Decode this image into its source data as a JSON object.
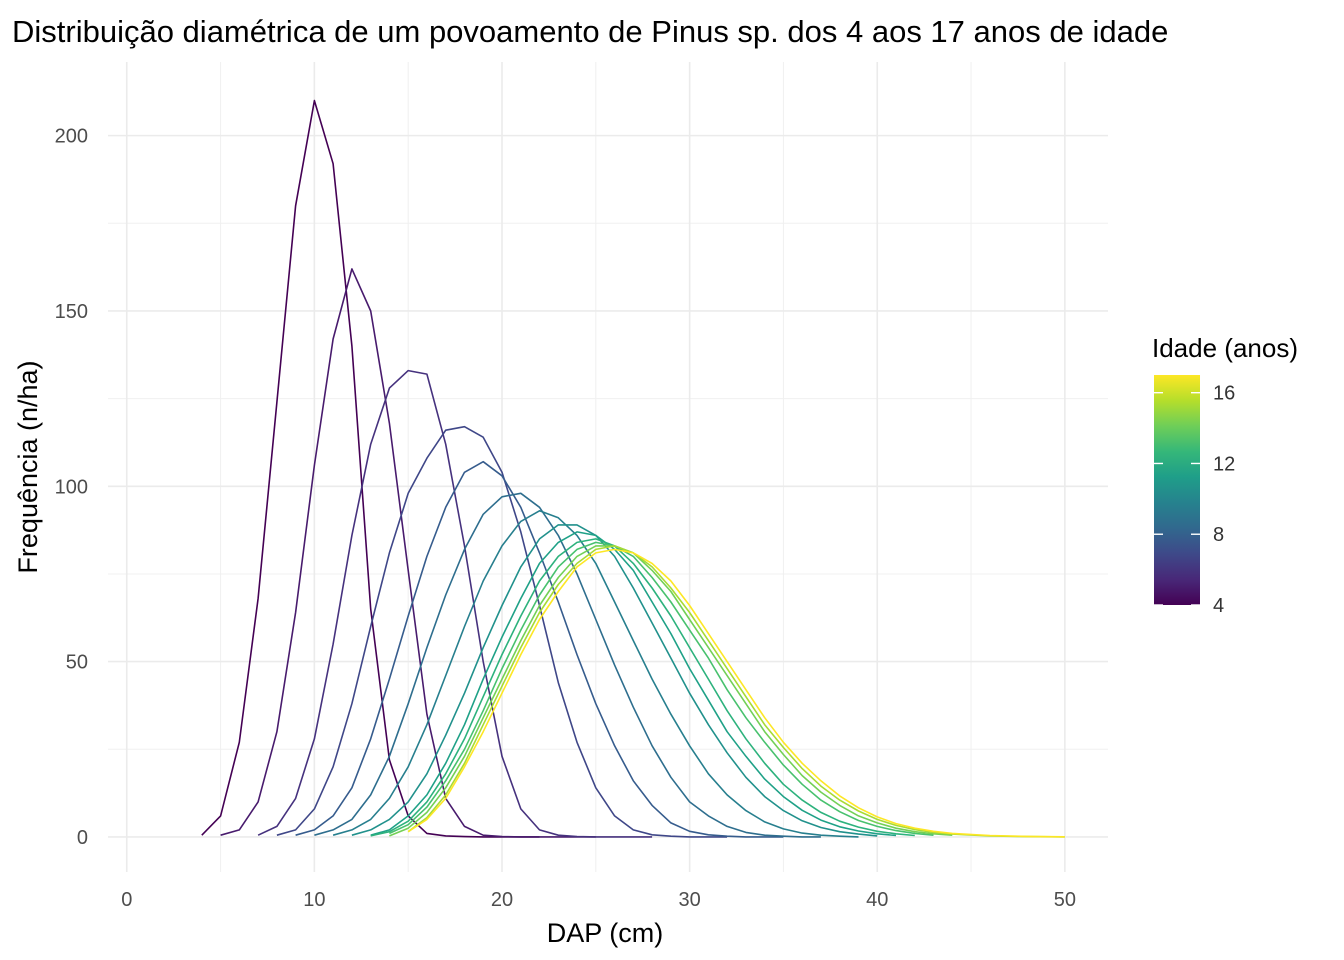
{
  "chart_data": {
    "type": "line",
    "title": "Distribuição diamétrica de um povoamento de Pinus sp. dos 4 aos 17 anos de idade",
    "xlabel": "DAP (cm)",
    "ylabel": "Frequência (n/ha)",
    "xlim": [
      -1,
      52.3
    ],
    "ylim": [
      -10,
      221
    ],
    "x_ticks": [
      0,
      10,
      20,
      30,
      40,
      50
    ],
    "y_ticks": [
      0,
      50,
      100,
      150,
      200
    ],
    "x_tick_labels": [
      "0",
      "10",
      "20",
      "30",
      "40",
      "50"
    ],
    "y_tick_labels": [
      "0",
      "50",
      "100",
      "150",
      "200"
    ],
    "grid": true,
    "legend": {
      "title": "Idade (anos)",
      "placement": "right",
      "type": "colorbar",
      "min": 4,
      "max": 17,
      "ticks": [
        4,
        8,
        12,
        16
      ],
      "tick_labels": [
        "4",
        "8",
        "12",
        "16"
      ],
      "colors": [
        "#440154",
        "#482878",
        "#3e4989",
        "#31688e",
        "#26828e",
        "#1f9e89",
        "#35b779",
        "#6ece58",
        "#b5de2b",
        "#fde725"
      ]
    },
    "series": [
      {
        "age": 4,
        "color": "#440154",
        "x": [
          4,
          5,
          6,
          7,
          8,
          9,
          10,
          11,
          12,
          13,
          14,
          15,
          16,
          17,
          18,
          19,
          20,
          21,
          22
        ],
        "y": [
          0.5,
          6,
          27,
          68,
          124,
          180,
          210,
          192,
          140,
          65,
          22,
          6,
          1,
          0.3,
          0.1,
          0,
          0,
          0,
          0
        ]
      },
      {
        "age": 5,
        "color": "#481b6d",
        "x": [
          5,
          6,
          7,
          8,
          9,
          10,
          11,
          12,
          13,
          14,
          15,
          16,
          17,
          18,
          19,
          20,
          21,
          22,
          23,
          24,
          25
        ],
        "y": [
          0.5,
          2,
          10,
          30,
          64,
          106,
          142,
          162,
          150,
          118,
          76,
          35,
          11,
          3,
          0.5,
          0.1,
          0,
          0,
          0,
          0,
          0
        ]
      },
      {
        "age": 6,
        "color": "#46327e",
        "x": [
          7,
          8,
          9,
          10,
          11,
          12,
          13,
          14,
          15,
          16,
          17,
          18,
          19,
          20,
          21,
          22,
          23,
          24,
          25,
          26,
          27,
          28
        ],
        "y": [
          0.5,
          3,
          11,
          28,
          55,
          86,
          112,
          128,
          133,
          132,
          112,
          83,
          50,
          23,
          8,
          2,
          0.5,
          0.1,
          0,
          0,
          0,
          0
        ]
      },
      {
        "age": 7,
        "color": "#3f4788",
        "x": [
          8,
          9,
          10,
          11,
          12,
          13,
          14,
          15,
          16,
          17,
          18,
          19,
          20,
          21,
          22,
          23,
          24,
          25,
          26,
          27,
          28,
          29,
          30,
          31,
          32
        ],
        "y": [
          0.5,
          2,
          8,
          20,
          38,
          60,
          81,
          98,
          108,
          116,
          117,
          114,
          104,
          87,
          66,
          44,
          27,
          14,
          6,
          2,
          0.6,
          0.2,
          0,
          0,
          0
        ]
      },
      {
        "age": 8,
        "color": "#365c8d",
        "x": [
          9,
          10,
          11,
          12,
          13,
          14,
          15,
          16,
          17,
          18,
          19,
          20,
          21,
          22,
          23,
          24,
          25,
          26,
          27,
          28,
          29,
          30,
          31,
          32,
          33,
          34,
          35
        ],
        "y": [
          0.5,
          2,
          6,
          14,
          28,
          45,
          63,
          80,
          94,
          104,
          107,
          103,
          94,
          81,
          67,
          52,
          38,
          26,
          16,
          9,
          4,
          1.6,
          0.6,
          0.2,
          0,
          0,
          0
        ]
      },
      {
        "age": 9,
        "color": "#2e6e8e",
        "x": [
          10,
          11,
          12,
          13,
          14,
          15,
          16,
          17,
          18,
          19,
          20,
          21,
          22,
          23,
          24,
          25,
          26,
          27,
          28,
          29,
          30,
          31,
          32,
          33,
          34,
          35,
          36,
          37
        ],
        "y": [
          0.5,
          2,
          5,
          12,
          23,
          38,
          54,
          69,
          82,
          92,
          97,
          98,
          94,
          86,
          75,
          62,
          49,
          37,
          26,
          17,
          10,
          6,
          3,
          1.3,
          0.5,
          0.2,
          0,
          0
        ]
      },
      {
        "age": 10,
        "color": "#277f8e",
        "x": [
          11,
          12,
          13,
          14,
          15,
          16,
          17,
          18,
          19,
          20,
          21,
          22,
          23,
          24,
          25,
          26,
          27,
          28,
          29,
          30,
          31,
          32,
          33,
          34,
          35,
          36,
          37,
          38,
          39
        ],
        "y": [
          0.5,
          2,
          5,
          11,
          20,
          32,
          46,
          60,
          73,
          83,
          90,
          93,
          91,
          86,
          78,
          67,
          56,
          45,
          35,
          26,
          18,
          12,
          7.5,
          4.3,
          2.3,
          1.1,
          0.5,
          0.2,
          0
        ]
      },
      {
        "age": 11,
        "color": "#21918c",
        "x": [
          12,
          13,
          14,
          15,
          16,
          17,
          18,
          19,
          20,
          21,
          22,
          23,
          24,
          25,
          26,
          27,
          28,
          29,
          30,
          31,
          32,
          33,
          34,
          35,
          36,
          37,
          38,
          39,
          40
        ],
        "y": [
          0.5,
          2,
          5,
          10,
          18,
          29,
          41,
          54,
          66,
          77,
          85,
          89,
          89,
          86,
          80,
          71,
          61,
          51,
          41,
          32,
          24,
          17,
          11.5,
          7.5,
          4.6,
          2.7,
          1.5,
          0.8,
          0.3
        ]
      },
      {
        "age": 12,
        "color": "#1fa187",
        "x": [
          13,
          14,
          15,
          16,
          17,
          18,
          19,
          20,
          21,
          22,
          23,
          24,
          25,
          26,
          27,
          28,
          29,
          30,
          31,
          32,
          33,
          34,
          35,
          36,
          37,
          38,
          39,
          40,
          41
        ],
        "y": [
          0.5,
          2,
          6,
          12,
          21,
          32,
          45,
          57,
          68,
          78,
          84,
          87,
          86,
          82,
          76,
          67,
          58,
          48,
          39,
          30,
          23,
          16.5,
          11.5,
          7.6,
          4.8,
          2.9,
          1.7,
          0.9,
          0.4
        ]
      },
      {
        "age": 13,
        "color": "#2db27d",
        "x": [
          13,
          14,
          15,
          16,
          17,
          18,
          19,
          20,
          21,
          22,
          23,
          24,
          25,
          26,
          27,
          28,
          29,
          30,
          31,
          32,
          33,
          34,
          35,
          36,
          37,
          38,
          39,
          40,
          41,
          42
        ],
        "y": [
          0.3,
          1.5,
          4.5,
          10,
          18,
          28,
          40,
          52,
          63,
          73,
          80,
          84,
          85,
          83,
          78,
          71,
          63,
          54,
          45,
          36,
          28,
          21,
          15,
          10.5,
          7,
          4.5,
          2.8,
          1.6,
          0.9,
          0.4
        ]
      },
      {
        "age": 14,
        "color": "#48c16e",
        "x": [
          14,
          15,
          16,
          17,
          18,
          19,
          20,
          21,
          22,
          23,
          24,
          25,
          26,
          27,
          28,
          29,
          30,
          31,
          32,
          33,
          34,
          35,
          36,
          37,
          38,
          39,
          40,
          41,
          42,
          43
        ],
        "y": [
          1,
          3.5,
          8.5,
          16,
          25,
          36,
          48,
          59,
          69,
          77,
          82,
          84,
          83,
          80,
          74,
          67,
          59,
          51,
          42,
          34,
          27,
          20.5,
          15,
          10.5,
          7.2,
          4.7,
          3,
          1.8,
          1,
          0.5
        ]
      },
      {
        "age": 15,
        "color": "#73d056",
        "x": [
          14,
          15,
          16,
          17,
          18,
          19,
          20,
          21,
          22,
          23,
          24,
          25,
          26,
          27,
          28,
          29,
          30,
          31,
          32,
          33,
          34,
          35,
          36,
          37,
          38,
          39,
          40,
          41,
          42,
          43,
          44
        ],
        "y": [
          0.3,
          2.5,
          7,
          14,
          23,
          34,
          45,
          56,
          66,
          74,
          80,
          83,
          83,
          81,
          76,
          70,
          62,
          54,
          46,
          38,
          30,
          23.5,
          17.5,
          12.8,
          9,
          6,
          4,
          2.5,
          1.5,
          0.9,
          0.5
        ]
      },
      {
        "age": 16,
        "color": "#a8db34",
        "x": [
          15,
          16,
          17,
          18,
          19,
          20,
          21,
          22,
          23,
          24,
          25,
          26,
          27,
          28,
          29,
          30,
          31,
          32,
          33,
          34,
          35,
          36,
          37,
          38,
          39,
          40,
          41,
          42,
          43,
          44,
          46,
          48,
          50
        ],
        "y": [
          1.5,
          5.5,
          12,
          21,
          32,
          43,
          54,
          64,
          72,
          78,
          82,
          83,
          81,
          77,
          71,
          64,
          56,
          48,
          40,
          32,
          25.5,
          19.5,
          14.5,
          10.5,
          7.4,
          5,
          3.3,
          2.1,
          1.3,
          0.8,
          0.3,
          0.1,
          0
        ]
      },
      {
        "age": 17,
        "color": "#fde725",
        "x": [
          15,
          16,
          17,
          18,
          19,
          20,
          21,
          22,
          23,
          24,
          25,
          26,
          27,
          28,
          29,
          30,
          31,
          32,
          33,
          34,
          35,
          36,
          37,
          38,
          39,
          40,
          41,
          42,
          43,
          44,
          46,
          48,
          50
        ],
        "y": [
          1.5,
          5,
          11,
          20,
          30,
          41,
          52,
          62,
          70,
          77,
          81,
          82,
          81,
          78,
          73,
          66,
          58,
          50,
          42,
          34,
          27,
          21,
          16,
          11.7,
          8.3,
          5.7,
          3.8,
          2.5,
          1.6,
          1,
          0.4,
          0.15,
          0.05
        ]
      }
    ]
  }
}
